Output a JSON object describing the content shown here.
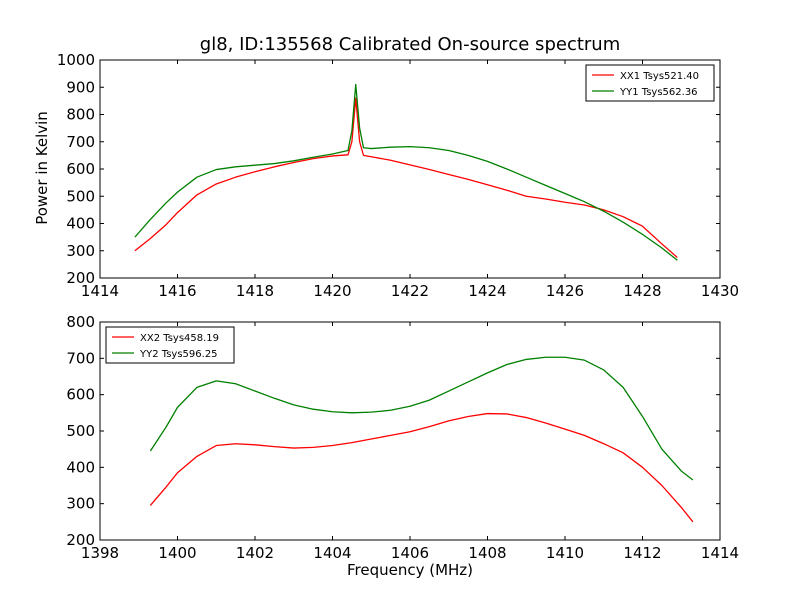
{
  "chart_data": {
    "title": "gl8, ID:135568 Calibrated On-source spectrum",
    "ylabel": "Power in Kelvin",
    "xlabel": "Frequency (MHz)",
    "panels": [
      {
        "type": "line",
        "xlim": [
          1414,
          1430
        ],
        "ylim": [
          200,
          1000
        ],
        "xticks": [
          "1414",
          "1416",
          "1418",
          "1420",
          "1422",
          "1424",
          "1426",
          "1428",
          "1430"
        ],
        "yticks": [
          "200",
          "300",
          "400",
          "500",
          "600",
          "700",
          "800",
          "900",
          "1000"
        ],
        "legend_position": "top-right",
        "series": [
          {
            "name": "XX1 Tsys521.40",
            "color": "#ff0000",
            "x": [
              1414.9,
              1415.3,
              1415.7,
              1416.0,
              1416.5,
              1417.0,
              1417.5,
              1418.0,
              1418.5,
              1419.0,
              1419.5,
              1420.0,
              1420.4,
              1420.5,
              1420.6,
              1420.7,
              1420.8,
              1421.0,
              1421.5,
              1422.0,
              1422.5,
              1423.0,
              1423.5,
              1424.0,
              1424.5,
              1425.0,
              1425.5,
              1426.0,
              1426.5,
              1427.0,
              1427.5,
              1428.0,
              1428.5,
              1428.9
            ],
            "y": [
              300,
              345,
              395,
              440,
              505,
              545,
              570,
              590,
              608,
              624,
              638,
              648,
              652,
              700,
              860,
              700,
              650,
              645,
              632,
              615,
              598,
              580,
              562,
              542,
              522,
              500,
              490,
              478,
              468,
              450,
              425,
              390,
              325,
              275
            ]
          },
          {
            "name": "YY1 Tsys562.36",
            "color": "#008000",
            "x": [
              1414.9,
              1415.3,
              1415.7,
              1416.0,
              1416.5,
              1417.0,
              1417.5,
              1418.0,
              1418.5,
              1419.0,
              1419.5,
              1420.0,
              1420.4,
              1420.5,
              1420.6,
              1420.7,
              1420.8,
              1421.0,
              1421.5,
              1422.0,
              1422.5,
              1423.0,
              1423.5,
              1424.0,
              1424.5,
              1425.0,
              1425.5,
              1426.0,
              1426.5,
              1427.0,
              1427.5,
              1428.0,
              1428.5,
              1428.9
            ],
            "y": [
              350,
              415,
              475,
              515,
              570,
              598,
              608,
              614,
              620,
              630,
              643,
              655,
              668,
              740,
              910,
              750,
              678,
              675,
              680,
              682,
              678,
              668,
              650,
              628,
              600,
              570,
              540,
              510,
              480,
              445,
              405,
              360,
              310,
              265
            ]
          }
        ]
      },
      {
        "type": "line",
        "xlim": [
          1398,
          1414
        ],
        "ylim": [
          200,
          800
        ],
        "xticks": [
          "1398",
          "1400",
          "1402",
          "1404",
          "1406",
          "1408",
          "1410",
          "1412",
          "1414"
        ],
        "yticks": [
          "200",
          "300",
          "400",
          "500",
          "600",
          "700",
          "800"
        ],
        "legend_position": "top-left",
        "series": [
          {
            "name": "XX2 Tsys458.19",
            "color": "#ff0000",
            "x": [
              1399.3,
              1399.7,
              1400.0,
              1400.5,
              1401.0,
              1401.5,
              1402.0,
              1402.5,
              1403.0,
              1403.5,
              1404.0,
              1404.5,
              1405.0,
              1405.5,
              1406.0,
              1406.5,
              1407.0,
              1407.5,
              1408.0,
              1408.5,
              1409.0,
              1409.5,
              1410.0,
              1410.5,
              1411.0,
              1411.5,
              1412.0,
              1412.5,
              1413.0,
              1413.3
            ],
            "y": [
              295,
              345,
              385,
              430,
              460,
              465,
              462,
              457,
              453,
              455,
              460,
              468,
              478,
              488,
              498,
              512,
              528,
              540,
              548,
              547,
              537,
              522,
              505,
              488,
              465,
              440,
              400,
              350,
              290,
              250
            ]
          },
          {
            "name": "YY2 Tsys596.25",
            "color": "#008000",
            "x": [
              1399.3,
              1399.7,
              1400.0,
              1400.5,
              1401.0,
              1401.5,
              1402.0,
              1402.5,
              1403.0,
              1403.5,
              1404.0,
              1404.5,
              1405.0,
              1405.5,
              1406.0,
              1406.5,
              1407.0,
              1407.5,
              1408.0,
              1408.5,
              1409.0,
              1409.5,
              1410.0,
              1410.5,
              1411.0,
              1411.5,
              1412.0,
              1412.5,
              1413.0,
              1413.3
            ],
            "y": [
              445,
              510,
              565,
              620,
              638,
              630,
              610,
              590,
              572,
              560,
              553,
              550,
              552,
              557,
              568,
              585,
              610,
              635,
              660,
              683,
              697,
              703,
              703,
              695,
              668,
              620,
              540,
              450,
              390,
              365
            ]
          }
        ]
      }
    ]
  }
}
